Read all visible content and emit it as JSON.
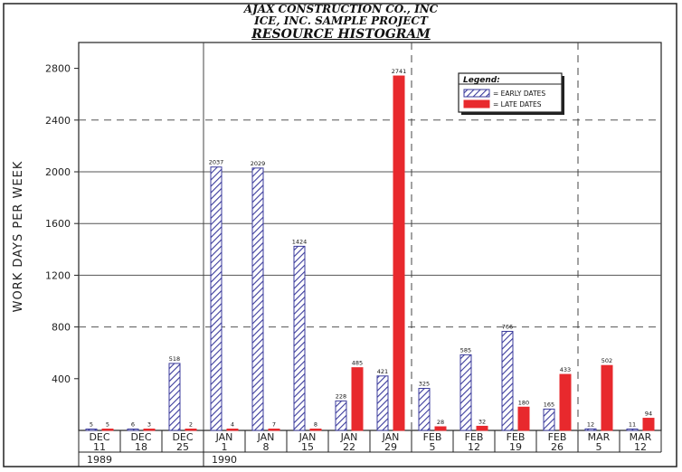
{
  "chart_data": {
    "type": "bar",
    "title": [
      "AJAX CONSTRUCTION CO., INC",
      "ICE, INC. SAMPLE PROJECT",
      "RESOURCE HISTOGRAM"
    ],
    "ylabel": "WORK DAYS PER WEEK",
    "ylim": [
      0,
      3000
    ],
    "yticks": [
      "400",
      "800",
      "1200",
      "1600",
      "2000",
      "2400",
      "2800"
    ],
    "categories": [
      [
        "DEC",
        "11"
      ],
      [
        "DEC",
        "18"
      ],
      [
        "DEC",
        "25"
      ],
      [
        "JAN",
        "1"
      ],
      [
        "JAN",
        "8"
      ],
      [
        "JAN",
        "15"
      ],
      [
        "JAN",
        "22"
      ],
      [
        "JAN",
        "29"
      ],
      [
        "FEB",
        "5"
      ],
      [
        "FEB",
        "12"
      ],
      [
        "FEB",
        "19"
      ],
      [
        "FEB",
        "26"
      ],
      [
        "MAR",
        "5"
      ],
      [
        "MAR",
        "12"
      ]
    ],
    "years": [
      {
        "label": "1989",
        "at": 0
      },
      {
        "label": "1990",
        "at": 3
      }
    ],
    "legend": {
      "title": "Legend:",
      "placement": "top-right"
    },
    "series": [
      {
        "name": "= EARLY DATES",
        "color": "#3b3b9c",
        "pattern": "hatch",
        "values": [
          5,
          6,
          518,
          2037,
          2029,
          1424,
          228,
          421,
          325,
          585,
          766,
          165,
          12,
          11
        ]
      },
      {
        "name": "= LATE DATES",
        "color": "#e8292d",
        "pattern": "solid",
        "values": [
          5,
          3,
          2,
          4,
          7,
          8,
          485,
          2741,
          28,
          32,
          180,
          433,
          502,
          94
        ]
      }
    ],
    "grid": {
      "solid_at": [
        1200,
        1600,
        2000
      ],
      "dashed_at": [
        800,
        2400
      ]
    }
  }
}
